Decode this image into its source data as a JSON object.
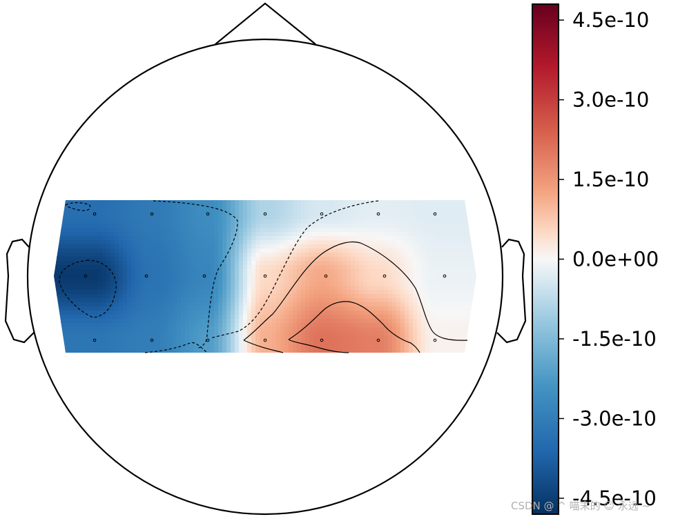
{
  "chart_data": {
    "type": "heatmap",
    "subtype": "eeg-topomap",
    "colormap": "RdBu_r",
    "vmin": -4.8e-10,
    "vmax": 4.8e-10,
    "colorbar": {
      "orientation": "vertical",
      "position": "right",
      "ticks": [
        4.5e-10,
        3e-10,
        1.5e-10,
        0.0,
        -1.5e-10,
        -3e-10,
        -4.5e-10
      ],
      "tick_labels": [
        "4.5e-10",
        "3.0e-10",
        "1.5e-10",
        "0.0e+00",
        "-1.5e-10",
        "-3.0e-10",
        "-4.5e-10"
      ]
    },
    "sensor_grid": {
      "columns": 7,
      "rows": 3,
      "values": [
        [
          -3.4e-10,
          -3.1e-10,
          -2.6e-10,
          -9e-11,
          -4e-11,
          -2.5e-11,
          -3e-11
        ],
        [
          -4.6e-10,
          -3.3e-10,
          -2.8e-10,
          5e-11,
          1.2e-10,
          5e-11,
          -1.5e-11
        ],
        [
          -3.2e-10,
          -3e-10,
          -2.2e-10,
          1.1e-10,
          2.1e-10,
          1.9e-10,
          1e-11
        ]
      ]
    },
    "contour_levels": [
      -3e-10,
      -1.5e-10,
      0.0,
      1.5e-10
    ],
    "contour_styles": [
      "dashed",
      "dashed",
      "solid",
      "solid"
    ],
    "head_outline": {
      "nose": true,
      "ears": true
    }
  },
  "watermark": "CSDN @ ^ 喵末的 ☺ 永远 ~"
}
